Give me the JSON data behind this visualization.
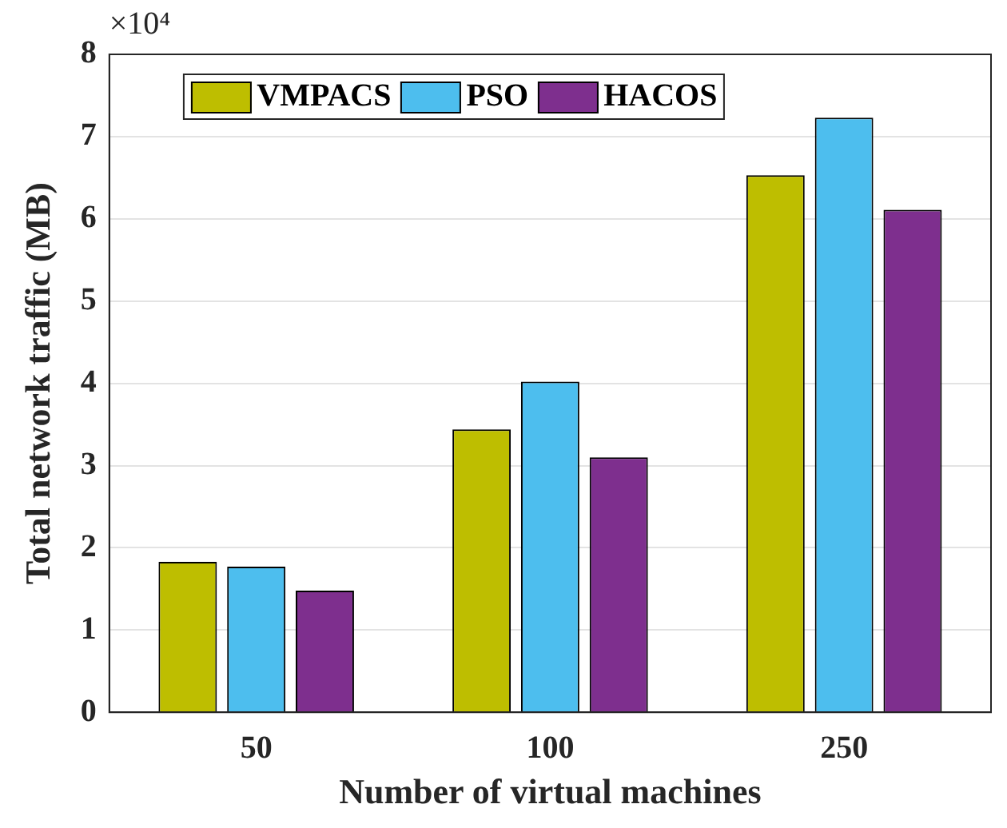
{
  "chart_data": {
    "type": "bar",
    "xlabel": "Number of virtual machines",
    "ylabel": "Total network traffic (MB)",
    "annotations": [
      "×10⁴"
    ],
    "categories": [
      "50",
      "100",
      "250"
    ],
    "series": [
      {
        "name": "VMPACS",
        "color": "#bebe00",
        "values": [
          1.83,
          3.44,
          6.53
        ]
      },
      {
        "name": "PSO",
        "color": "#4dbeee",
        "values": [
          1.77,
          4.02,
          7.23
        ]
      },
      {
        "name": "HACOS",
        "color": "#7e2f8e",
        "values": [
          1.48,
          3.1,
          6.11
        ]
      }
    ],
    "ylim": [
      0,
      8
    ],
    "yticks": [
      0,
      1,
      2,
      3,
      4,
      5,
      6,
      7,
      8
    ],
    "grid": "y",
    "legend": "top"
  }
}
